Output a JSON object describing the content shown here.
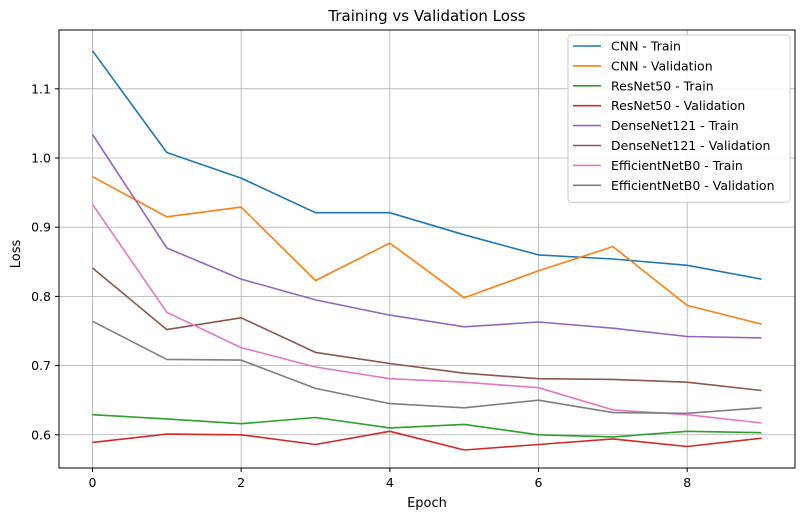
{
  "chart_data": {
    "type": "line",
    "title": "Training vs Validation Loss",
    "xlabel": "Epoch",
    "ylabel": "Loss",
    "xlim": [
      -0.45,
      9.45
    ],
    "ylim": [
      0.552,
      1.185
    ],
    "xticks": [
      0,
      2,
      4,
      6,
      8
    ],
    "yticks": [
      0.6,
      0.7,
      0.8,
      0.9,
      1.0,
      1.1
    ],
    "ytick_labels": [
      "0.6",
      "0.7",
      "0.8",
      "0.9",
      "1.0",
      "1.1"
    ],
    "grid": true,
    "legend_position": "upper right",
    "x": [
      0,
      1,
      2,
      3,
      4,
      5,
      6,
      7,
      8,
      9
    ],
    "series": [
      {
        "name": "CNN - Train",
        "color": "#1f77b4",
        "values": [
          1.155,
          1.008,
          0.971,
          0.921,
          0.921,
          0.889,
          0.86,
          0.854,
          0.845,
          0.825
        ]
      },
      {
        "name": "CNN - Validation",
        "color": "#ff7f0e",
        "values": [
          0.973,
          0.915,
          0.929,
          0.823,
          0.877,
          0.798,
          0.837,
          0.872,
          0.787,
          0.76
        ]
      },
      {
        "name": "ResNet50 - Train",
        "color": "#2ca02c",
        "values": [
          0.629,
          0.623,
          0.616,
          0.625,
          0.61,
          0.615,
          0.6,
          0.597,
          0.605,
          0.603
        ]
      },
      {
        "name": "ResNet50 - Validation",
        "color": "#d62728",
        "values": [
          0.589,
          0.601,
          0.6,
          0.586,
          0.605,
          0.578,
          0.586,
          0.594,
          0.583,
          0.595
        ]
      },
      {
        "name": "DenseNet121 - Train",
        "color": "#9467bd",
        "values": [
          1.034,
          0.87,
          0.825,
          0.795,
          0.773,
          0.756,
          0.763,
          0.754,
          0.742,
          0.74
        ]
      },
      {
        "name": "DenseNet121 - Validation",
        "color": "#8c564b",
        "values": [
          0.841,
          0.752,
          0.769,
          0.719,
          0.703,
          0.689,
          0.681,
          0.68,
          0.676,
          0.664
        ]
      },
      {
        "name": "EfficientNetB0 - Train",
        "color": "#e377c2",
        "values": [
          0.933,
          0.777,
          0.726,
          0.698,
          0.681,
          0.676,
          0.668,
          0.636,
          0.629,
          0.617
        ]
      },
      {
        "name": "EfficientNetB0 - Validation",
        "color": "#7f7f7f",
        "values": [
          0.764,
          0.709,
          0.708,
          0.667,
          0.645,
          0.639,
          0.65,
          0.632,
          0.631,
          0.639
        ]
      }
    ]
  }
}
